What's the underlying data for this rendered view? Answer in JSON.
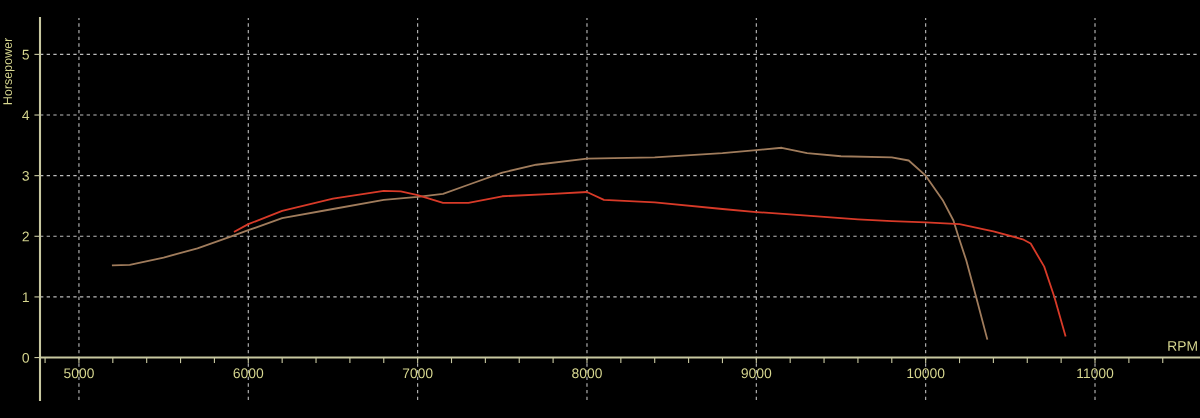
{
  "chart_data": {
    "type": "line",
    "xlabel": "RPM",
    "ylabel": "Horsepower",
    "xlim": [
      4770,
      11620
    ],
    "ylim": [
      -0.7,
      5.6
    ],
    "xticks": [
      {
        "value": 4800,
        "label": null
      },
      5000,
      {
        "value": 5200,
        "label": null
      },
      {
        "value": 5400,
        "label": null
      },
      {
        "value": 5600,
        "label": null
      },
      {
        "value": 5800,
        "label": null
      },
      6000,
      {
        "value": 6200,
        "label": null
      },
      {
        "value": 6400,
        "label": null
      },
      {
        "value": 6600,
        "label": null
      },
      {
        "value": 6800,
        "label": null
      },
      7000,
      {
        "value": 7200,
        "label": null
      },
      {
        "value": 7400,
        "label": null
      },
      {
        "value": 7600,
        "label": null
      },
      {
        "value": 7800,
        "label": null
      },
      8000,
      {
        "value": 8200,
        "label": null
      },
      {
        "value": 8400,
        "label": null
      },
      {
        "value": 8600,
        "label": null
      },
      {
        "value": 8800,
        "label": null
      },
      9000,
      {
        "value": 9200,
        "label": null
      },
      {
        "value": 9400,
        "label": null
      },
      {
        "value": 9600,
        "label": null
      },
      {
        "value": 9800,
        "label": null
      },
      10000,
      {
        "value": 10200,
        "label": null
      },
      {
        "value": 10400,
        "label": null
      },
      {
        "value": 10600,
        "label": null
      },
      {
        "value": 10800,
        "label": null
      },
      11000,
      {
        "value": 11200,
        "label": null
      },
      {
        "value": 11400,
        "label": null
      }
    ],
    "yticks": [
      0,
      1,
      2,
      3,
      4,
      5
    ],
    "grid": true,
    "legend": false,
    "marker": "none",
    "line_style": "solid",
    "series": [
      {
        "color": "#a07c5c",
        "x": [
          5200,
          5300,
          5500,
          5700,
          5900,
          6000,
          6200,
          6500,
          6800,
          7000,
          7150,
          7300,
          7500,
          7700,
          8000,
          8400,
          8800,
          9000,
          9150,
          9300,
          9500,
          9800,
          9900,
          10000,
          10100,
          10164,
          10193,
          10240,
          10298,
          10363
        ],
        "values": [
          1.52,
          1.53,
          1.65,
          1.8,
          2.0,
          2.1,
          2.3,
          2.45,
          2.6,
          2.65,
          2.7,
          2.85,
          3.05,
          3.18,
          3.28,
          3.3,
          3.37,
          3.42,
          3.46,
          3.37,
          3.32,
          3.3,
          3.25,
          3.0,
          2.6,
          2.26,
          2.0,
          1.6,
          1.0,
          0.31
        ]
      },
      {
        "color": "#d83a28",
        "x": [
          5920,
          6000,
          6200,
          6500,
          6800,
          6900,
          7000,
          7150,
          7300,
          7500,
          7800,
          8000,
          8100,
          8400,
          8800,
          9000,
          9300,
          9600,
          9800,
          10000,
          10200,
          10400,
          10573,
          10620,
          10700,
          10760,
          10825
        ],
        "values": [
          2.08,
          2.2,
          2.42,
          2.62,
          2.75,
          2.74,
          2.68,
          2.55,
          2.55,
          2.66,
          2.7,
          2.73,
          2.6,
          2.56,
          2.45,
          2.4,
          2.34,
          2.28,
          2.25,
          2.23,
          2.2,
          2.08,
          1.95,
          1.88,
          1.5,
          1.0,
          0.36
        ]
      }
    ]
  }
}
